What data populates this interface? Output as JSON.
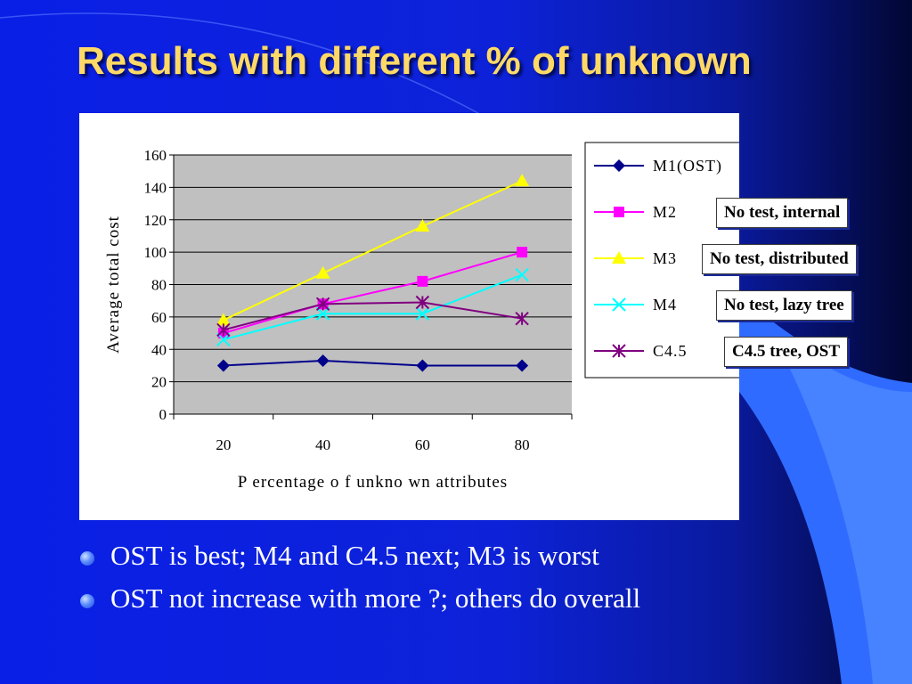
{
  "slide": {
    "title": "Results with different % of unknown",
    "callouts": [
      "No test, internal",
      "No test, distributed",
      "No test, lazy tree",
      "C4.5 tree, OST"
    ],
    "bullets": [
      "OST is best; M4 and C4.5 next; M3 is worst",
      "OST not increase with more ?; others do overall"
    ]
  },
  "chart_data": {
    "type": "line",
    "title": "",
    "xlabel": "P ercentage o f unkno wn attributes",
    "ylabel": "Average total cost",
    "categories": [
      "20",
      "40",
      "60",
      "80"
    ],
    "ylim": [
      0,
      160
    ],
    "yticks": [
      "0",
      "20",
      "40",
      "60",
      "80",
      "100",
      "120",
      "140",
      "160"
    ],
    "grid": true,
    "legend_position": "right",
    "series": [
      {
        "name": "M1(OST)",
        "color": "#00008b",
        "marker": "diamond",
        "values": [
          30,
          33,
          30,
          30
        ]
      },
      {
        "name": "M2",
        "color": "#ff00ff",
        "marker": "square",
        "values": [
          50,
          68,
          82,
          100
        ]
      },
      {
        "name": "M3",
        "color": "#ffff00",
        "marker": "triangle",
        "values": [
          58,
          87,
          116,
          144
        ]
      },
      {
        "name": "M4",
        "color": "#00ffff",
        "marker": "x",
        "values": [
          46,
          62,
          62,
          86
        ]
      },
      {
        "name": "C4.5",
        "color": "#800080",
        "marker": "asterisk",
        "values": [
          52,
          68,
          69,
          59
        ]
      }
    ]
  }
}
